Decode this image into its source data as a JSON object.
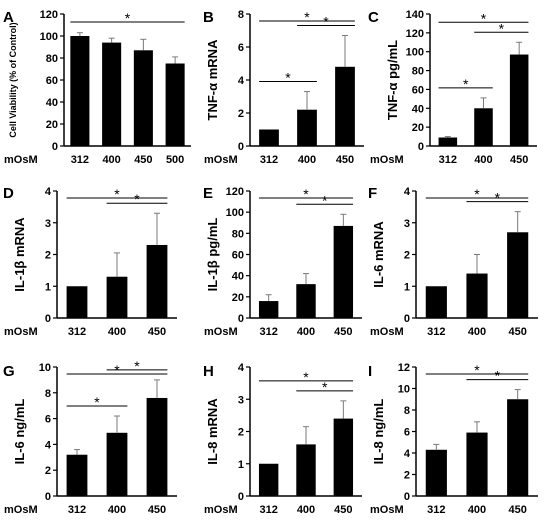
{
  "x_title": "mOsM",
  "chart_data": [
    {
      "panel": "A",
      "type": "bar",
      "ylabel": "Cell Viability (% of Control)",
      "categories": [
        "312",
        "400",
        "450",
        "500"
      ],
      "values": [
        100,
        94,
        87,
        75
      ],
      "errors": [
        3,
        4,
        10,
        6
      ],
      "ylim": [
        0,
        120
      ],
      "yticks": [
        0,
        20,
        40,
        60,
        80,
        100,
        120
      ],
      "sig": [
        {
          "from": 0,
          "to": 3,
          "label": "*"
        }
      ]
    },
    {
      "panel": "B",
      "type": "bar",
      "ylabel": "TNF-α mRNA",
      "categories": [
        "312",
        "400",
        "450"
      ],
      "values": [
        1,
        2.2,
        4.8
      ],
      "errors": [
        0,
        1.1,
        1.9
      ],
      "ylim": [
        0,
        8
      ],
      "yticks": [
        0,
        2,
        4,
        6,
        8
      ],
      "sig": [
        {
          "from": 0,
          "to": 1,
          "label": "*"
        },
        {
          "from": 1,
          "to": 2,
          "label": "*"
        },
        {
          "from": 0,
          "to": 2,
          "label": "*"
        }
      ]
    },
    {
      "panel": "C",
      "type": "bar",
      "ylabel": "TNF-α pg/mL",
      "categories": [
        "312",
        "400",
        "450"
      ],
      "values": [
        9,
        40,
        97
      ],
      "errors": [
        1,
        11,
        13
      ],
      "ylim": [
        0,
        140
      ],
      "yticks": [
        0,
        20,
        40,
        60,
        80,
        100,
        120,
        140
      ],
      "sig": [
        {
          "from": 0,
          "to": 1,
          "label": "*"
        },
        {
          "from": 1,
          "to": 2,
          "label": "*"
        },
        {
          "from": 0,
          "to": 2,
          "label": "*"
        }
      ]
    },
    {
      "panel": "D",
      "type": "bar",
      "ylabel": "IL-1β mRNA",
      "categories": [
        "312",
        "400",
        "450"
      ],
      "values": [
        1,
        1.3,
        2.3
      ],
      "errors": [
        0,
        0.75,
        1.0
      ],
      "ylim": [
        0,
        4
      ],
      "yticks": [
        0,
        1,
        2,
        3,
        4
      ],
      "sig": [
        {
          "from": 1,
          "to": 2,
          "label": "*"
        },
        {
          "from": 0,
          "to": 2,
          "label": "*"
        }
      ]
    },
    {
      "panel": "E",
      "type": "bar",
      "ylabel": "IL-1β pg/mL",
      "categories": [
        "312",
        "400",
        "450"
      ],
      "values": [
        16,
        32,
        87
      ],
      "errors": [
        6,
        10,
        11
      ],
      "ylim": [
        0,
        120
      ],
      "yticks": [
        0,
        20,
        40,
        60,
        80,
        100,
        120
      ],
      "sig": [
        {
          "from": 1,
          "to": 2,
          "label": "*"
        },
        {
          "from": 0,
          "to": 2,
          "label": "*"
        }
      ]
    },
    {
      "panel": "F",
      "type": "bar",
      "ylabel": "IL-6 mRNA",
      "categories": [
        "312",
        "400",
        "450"
      ],
      "values": [
        1,
        1.4,
        2.7
      ],
      "errors": [
        0,
        0.6,
        0.65
      ],
      "ylim": [
        0,
        4
      ],
      "yticks": [
        0,
        1,
        2,
        3,
        4
      ],
      "sig": [
        {
          "from": 1,
          "to": 2,
          "label": "*"
        },
        {
          "from": 0,
          "to": 2,
          "label": "*"
        }
      ]
    },
    {
      "panel": "G",
      "type": "bar",
      "ylabel": "IL-6 ng/mL",
      "categories": [
        "312",
        "400",
        "450"
      ],
      "values": [
        3.2,
        4.9,
        7.6
      ],
      "errors": [
        0.4,
        1.3,
        1.4
      ],
      "ylim": [
        0,
        10
      ],
      "yticks": [
        0,
        2,
        4,
        6,
        8,
        10
      ],
      "sig": [
        {
          "from": 0,
          "to": 1,
          "label": "*"
        },
        {
          "from": 1,
          "to": 2,
          "label": "*"
        },
        {
          "from": 0,
          "to": 2,
          "label": "*"
        }
      ]
    },
    {
      "panel": "H",
      "type": "bar",
      "ylabel": "IL-8 mRNA",
      "categories": [
        "312",
        "400",
        "450"
      ],
      "values": [
        1,
        1.6,
        2.4
      ],
      "errors": [
        0,
        0.55,
        0.55
      ],
      "ylim": [
        0,
        4
      ],
      "yticks": [
        0,
        1,
        2,
        3,
        4
      ],
      "sig": [
        {
          "from": 1,
          "to": 2,
          "label": "*"
        },
        {
          "from": 0,
          "to": 2,
          "label": "*"
        }
      ]
    },
    {
      "panel": "I",
      "type": "bar",
      "ylabel": "IL-8 ng/mL",
      "categories": [
        "312",
        "400",
        "450"
      ],
      "values": [
        4.3,
        5.9,
        9.0
      ],
      "errors": [
        0.5,
        1.0,
        0.9
      ],
      "ylim": [
        0,
        12
      ],
      "yticks": [
        0,
        2,
        4,
        6,
        8,
        10,
        12
      ],
      "sig": [
        {
          "from": 1,
          "to": 2,
          "label": "*"
        },
        {
          "from": 0,
          "to": 2,
          "label": "*"
        }
      ]
    }
  ]
}
